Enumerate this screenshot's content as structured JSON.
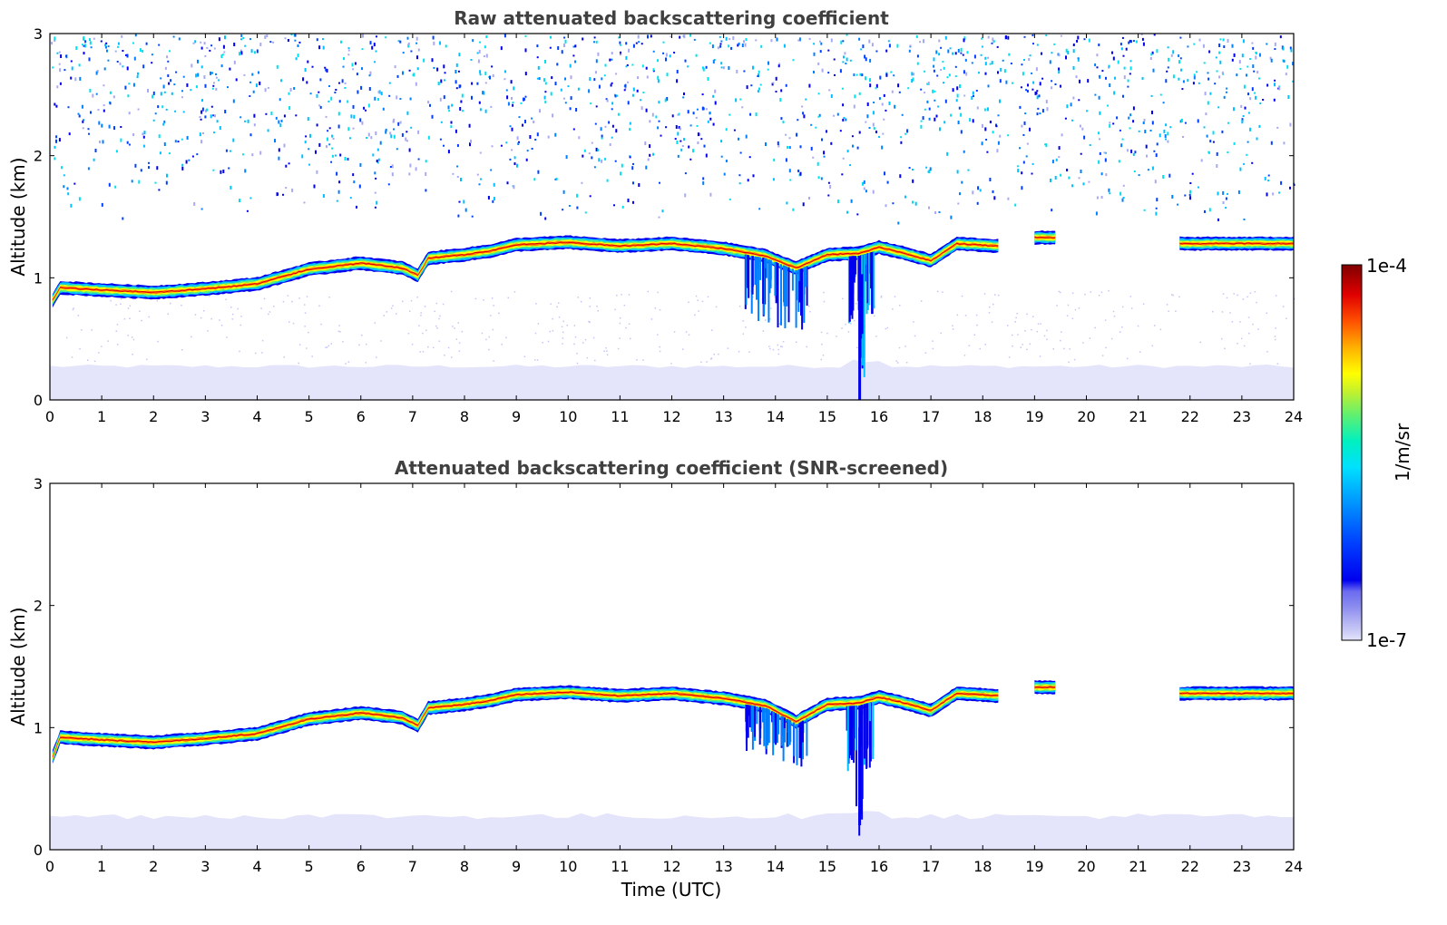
{
  "chart_data": [
    {
      "type": "heatmap",
      "title": "Raw attenuated backscattering coefficient",
      "xlabel": "",
      "ylabel": "Altitude (km)",
      "xlim": [
        0,
        24
      ],
      "ylim": [
        0,
        3
      ],
      "x_ticks": [
        "0",
        "1",
        "2",
        "3",
        "4",
        "5",
        "6",
        "7",
        "8",
        "9",
        "10",
        "11",
        "12",
        "13",
        "14",
        "15",
        "16",
        "17",
        "18",
        "19",
        "20",
        "21",
        "22",
        "23",
        "24"
      ],
      "y_ticks": [
        "0",
        "1",
        "2",
        "3"
      ],
      "layer_altitude_km": [
        [
          0.0,
          0.78
        ],
        [
          0.2,
          0.92
        ],
        [
          1.0,
          0.9
        ],
        [
          2.0,
          0.88
        ],
        [
          3.0,
          0.91
        ],
        [
          4.0,
          0.95
        ],
        [
          5.0,
          1.07
        ],
        [
          6.0,
          1.12
        ],
        [
          6.8,
          1.08
        ],
        [
          7.1,
          1.02
        ],
        [
          7.3,
          1.16
        ],
        [
          8.0,
          1.19
        ],
        [
          8.5,
          1.22
        ],
        [
          9.0,
          1.27
        ],
        [
          10.0,
          1.29
        ],
        [
          11.0,
          1.26
        ],
        [
          12.0,
          1.28
        ],
        [
          13.0,
          1.24
        ],
        [
          13.8,
          1.18
        ],
        [
          14.4,
          1.08
        ],
        [
          15.0,
          1.19
        ],
        [
          15.6,
          1.2
        ],
        [
          16.0,
          1.25
        ],
        [
          16.5,
          1.2
        ],
        [
          17.0,
          1.14
        ],
        [
          17.5,
          1.28
        ],
        [
          18.3,
          1.26
        ]
      ],
      "isolated_layers": [
        {
          "x_range": [
            19.0,
            19.4
          ],
          "altitude_km": 1.33
        },
        {
          "x_range": [
            21.8,
            24.0
          ],
          "altitude_km": 1.28
        }
      ],
      "scale": "log",
      "colorbar": {
        "min": "1e-7",
        "max": "1e-4",
        "label": "1/m/sr"
      }
    },
    {
      "type": "heatmap",
      "title": "Attenuated backscattering coefficient (SNR-screened)",
      "xlabel": "Time (UTC)",
      "ylabel": "Altitude (km)",
      "xlim": [
        0,
        24
      ],
      "ylim": [
        0,
        3
      ],
      "x_ticks": [
        "0",
        "1",
        "2",
        "3",
        "4",
        "5",
        "6",
        "7",
        "8",
        "9",
        "10",
        "11",
        "12",
        "13",
        "14",
        "15",
        "16",
        "17",
        "18",
        "19",
        "20",
        "21",
        "22",
        "23",
        "24"
      ],
      "y_ticks": [
        "0",
        "1",
        "2",
        "3"
      ],
      "layer_altitude_km": [
        [
          0.0,
          0.7
        ],
        [
          0.2,
          0.92
        ],
        [
          1.0,
          0.9
        ],
        [
          2.0,
          0.88
        ],
        [
          3.0,
          0.91
        ],
        [
          4.0,
          0.95
        ],
        [
          5.0,
          1.07
        ],
        [
          6.0,
          1.12
        ],
        [
          6.8,
          1.08
        ],
        [
          7.1,
          1.02
        ],
        [
          7.3,
          1.16
        ],
        [
          8.0,
          1.19
        ],
        [
          8.5,
          1.22
        ],
        [
          9.0,
          1.27
        ],
        [
          10.0,
          1.29
        ],
        [
          11.0,
          1.26
        ],
        [
          12.0,
          1.28
        ],
        [
          13.0,
          1.24
        ],
        [
          13.8,
          1.18
        ],
        [
          14.4,
          1.05
        ],
        [
          15.0,
          1.19
        ],
        [
          15.6,
          1.2
        ],
        [
          16.0,
          1.25
        ],
        [
          16.5,
          1.2
        ],
        [
          17.0,
          1.14
        ],
        [
          17.5,
          1.28
        ],
        [
          18.3,
          1.26
        ]
      ],
      "isolated_layers": [
        {
          "x_range": [
            19.0,
            19.4
          ],
          "altitude_km": 1.33
        },
        {
          "x_range": [
            21.8,
            24.0
          ],
          "altitude_km": 1.28
        }
      ],
      "scale": "log",
      "colorbar": {
        "min": "1e-7",
        "max": "1e-4",
        "label": "1/m/sr"
      }
    }
  ],
  "colors": {
    "background_noise": "#e4e4fb",
    "frame": "#000000",
    "title": "#404040",
    "colormap": [
      "#e4e4fb",
      "#c5c5f5",
      "#a9a9f2",
      "#8b8bf0",
      "#6b6bf0",
      "#0000ee",
      "#0040ff",
      "#0080ff",
      "#00c0ff",
      "#00eeee",
      "#20f0a0",
      "#80f060",
      "#c8f020",
      "#ffff00",
      "#ffc000",
      "#ff8000",
      "#ff3000",
      "#e00000",
      "#800000"
    ]
  }
}
